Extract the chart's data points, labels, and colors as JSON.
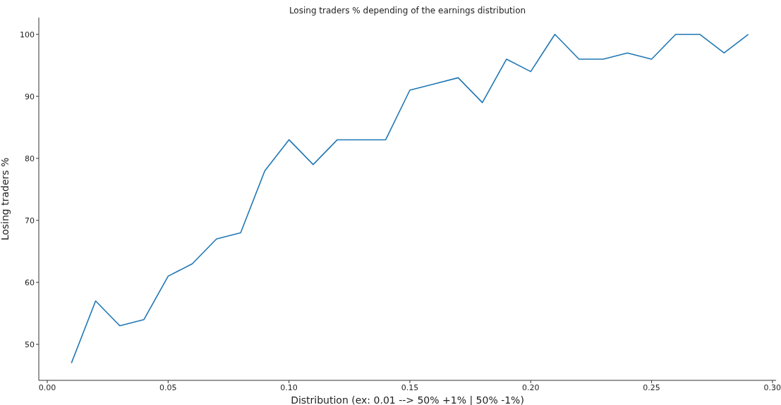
{
  "chart_data": {
    "type": "line",
    "title": "Losing traders % depending of the earnings distribution",
    "xlabel": "Distribution (ex: 0.01 --> 50% +1% | 50% -1%)",
    "ylabel": "Losing traders %",
    "x": [
      0.01,
      0.02,
      0.03,
      0.04,
      0.05,
      0.06,
      0.07,
      0.08,
      0.09,
      0.1,
      0.11,
      0.12,
      0.13,
      0.14,
      0.15,
      0.16,
      0.17,
      0.18,
      0.19,
      0.2,
      0.21,
      0.22,
      0.23,
      0.24,
      0.25,
      0.26,
      0.27,
      0.28,
      0.29
    ],
    "series": [
      {
        "color": "#1f77b4",
        "values": [
          47,
          57,
          53,
          54,
          61,
          63,
          67,
          68,
          78,
          83,
          79,
          83,
          83,
          83,
          91,
          92,
          93,
          89,
          96,
          94,
          100,
          96,
          96,
          97,
          96,
          100,
          100,
          97,
          100
        ]
      }
    ],
    "xlim": [
      -0.0035,
      0.3015
    ],
    "xticks": [
      {
        "value": 0,
        "label": "0.00"
      },
      {
        "value": 0.05,
        "label": "0.05"
      },
      {
        "value": 0.1,
        "label": "0.10"
      },
      {
        "value": 0.15,
        "label": "0.15"
      },
      {
        "value": 0.2,
        "label": "0.20"
      },
      {
        "value": 0.25,
        "label": "0.25"
      },
      {
        "value": 0.3,
        "label": "0.30"
      }
    ],
    "ylim": [
      44.2,
      102.7
    ],
    "yticks": [
      50,
      60,
      70,
      80,
      90,
      100
    ],
    "grid": false,
    "legend": false,
    "marker": "none",
    "line_style": "solid"
  }
}
